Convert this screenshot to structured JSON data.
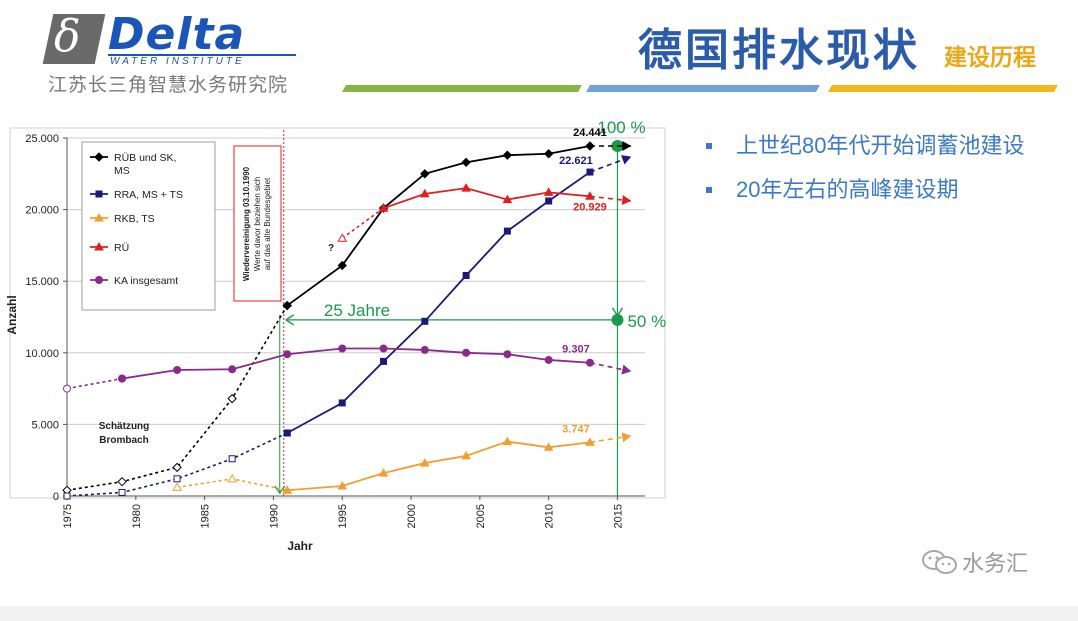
{
  "header": {
    "logo_word": "Delta",
    "logo_symbol": "δ",
    "logo_sub": "WATER INSTITUTE",
    "logo_cn": "江苏长三角智慧水务研究院",
    "title": "德国排水现状",
    "subtitle": "建设历程"
  },
  "bullets": [
    "上世纪80年代开始调蓄池建设",
    "20年左右的高峰建设期"
  ],
  "watermark": "水务汇",
  "colors": {
    "title": "#2a5caa",
    "subtitle": "#e8a817",
    "bar_green": "#8ab544",
    "bar_blue": "#6fa2d7",
    "bar_yellow": "#f2b71b",
    "bullet": "#3c79c8",
    "annotation_green": "#1a9a4a"
  },
  "chart_data": {
    "type": "line",
    "xlabel": "Jahr",
    "ylabel": "Anzahl",
    "xlim": [
      1975,
      2017
    ],
    "ylim": [
      0,
      25000
    ],
    "x_ticks": [
      1975,
      1980,
      1985,
      1990,
      1995,
      2000,
      2005,
      2010,
      2015
    ],
    "x_tick_labels": [
      "1975",
      "1980",
      "1985",
      "1990",
      "1995",
      "2000",
      "2005",
      "2010",
      "2015"
    ],
    "y_ticks": [
      0,
      5000,
      10000,
      15000,
      20000,
      25000
    ],
    "y_tick_labels": [
      "0",
      "5.000",
      "10.000",
      "15.000",
      "20.000",
      "25.000"
    ],
    "grid": "horizontal",
    "legend_position": "top-left",
    "series": [
      {
        "name": "RÜB und SK, MS",
        "color": "#000000",
        "marker": "diamond",
        "estimate": [
          [
            1975,
            400
          ],
          [
            1979,
            1000
          ],
          [
            1983,
            2000
          ],
          [
            1987,
            6800
          ],
          [
            1991,
            13300
          ]
        ],
        "values": [
          [
            1991,
            13300
          ],
          [
            1995,
            16100
          ],
          [
            1998,
            20100
          ],
          [
            2001,
            22500
          ],
          [
            2004,
            23300
          ],
          [
            2007,
            23800
          ],
          [
            2010,
            23900
          ],
          [
            2013,
            24441
          ]
        ],
        "projection": [
          [
            2013,
            24441
          ],
          [
            2016,
            24441
          ]
        ],
        "end_label": "24.441"
      },
      {
        "name": "RRA, MS + TS",
        "color": "#1a1a7a",
        "marker": "square",
        "estimate": [
          [
            1975,
            0
          ],
          [
            1979,
            250
          ],
          [
            1983,
            1200
          ],
          [
            1987,
            2600
          ],
          [
            1991,
            4400
          ]
        ],
        "values": [
          [
            1991,
            4400
          ],
          [
            1995,
            6500
          ],
          [
            1998,
            9400
          ],
          [
            2001,
            12200
          ],
          [
            2004,
            15400
          ],
          [
            2007,
            18500
          ],
          [
            2010,
            20600
          ],
          [
            2013,
            22621
          ]
        ],
        "projection": [
          [
            2013,
            22621
          ],
          [
            2016,
            23700
          ]
        ],
        "end_label": "22.621"
      },
      {
        "name": "RKB, TS",
        "color": "#f0a030",
        "marker": "triangle",
        "estimate": [
          [
            1983,
            600
          ],
          [
            1987,
            1200
          ],
          [
            1991,
            400
          ]
        ],
        "values": [
          [
            1991,
            400
          ],
          [
            1995,
            700
          ],
          [
            1998,
            1600
          ],
          [
            2001,
            2300
          ],
          [
            2004,
            2800
          ],
          [
            2007,
            3800
          ],
          [
            2010,
            3400
          ],
          [
            2013,
            3747
          ]
        ],
        "projection": [
          [
            2013,
            3747
          ],
          [
            2016,
            4200
          ]
        ],
        "end_label": "3.747"
      },
      {
        "name": "RÜ",
        "color": "#e02020",
        "marker": "triangle",
        "estimate": [
          [
            1995,
            18000
          ],
          [
            1998,
            20100
          ]
        ],
        "values": [
          [
            1998,
            20100
          ],
          [
            2001,
            21100
          ],
          [
            2004,
            21500
          ],
          [
            2007,
            20700
          ],
          [
            2010,
            21200
          ],
          [
            2013,
            20929
          ]
        ],
        "projection": [
          [
            2013,
            20929
          ],
          [
            2016,
            20600
          ]
        ],
        "end_label": "20.929"
      },
      {
        "name": "KA insgesamt",
        "color": "#8a2a8a",
        "marker": "circle",
        "estimate": [
          [
            1975,
            7500
          ],
          [
            1979,
            8200
          ]
        ],
        "values": [
          [
            1979,
            8200
          ],
          [
            1983,
            8800
          ],
          [
            1987,
            8850
          ],
          [
            1991,
            9900
          ],
          [
            1995,
            10300
          ],
          [
            1998,
            10300
          ],
          [
            2001,
            10200
          ],
          [
            2004,
            10000
          ],
          [
            2007,
            9900
          ],
          [
            2010,
            9500
          ],
          [
            2013,
            9307
          ]
        ],
        "projection": [
          [
            2013,
            9307
          ],
          [
            2016,
            8700
          ]
        ],
        "end_label": "9.307"
      }
    ],
    "annotations": {
      "reunification": "Wiedervereinigung 03.10.1990",
      "reunification_note": [
        "Werte davor beziehen sich",
        "auf das alte Bundesgebiet"
      ],
      "reunification_year": 1990.75,
      "question_mark": "?",
      "estimate_label": [
        "Schätzung",
        "Brombach"
      ],
      "span_label": "25 Jahre",
      "span_from": 1990.75,
      "span_to": 2015,
      "pct100_label": "100 %",
      "pct100_value": 24441,
      "pct50_label": "50 %",
      "pct50_value": 12300
    }
  }
}
